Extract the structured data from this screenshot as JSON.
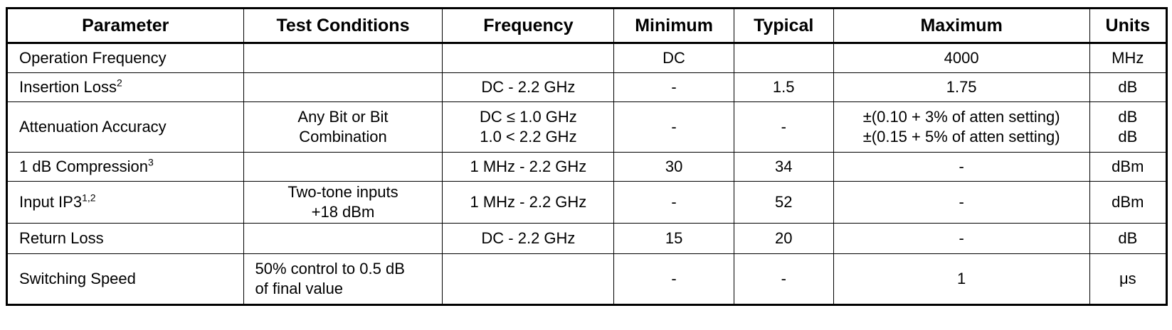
{
  "headers": {
    "parameter": "Parameter",
    "test_conditions": "Test Conditions",
    "frequency": "Frequency",
    "minimum": "Minimum",
    "typical": "Typical",
    "maximum": "Maximum",
    "units": "Units"
  },
  "rows": [
    {
      "parameter": "Operation Frequency",
      "sup": "",
      "test_conditions": [
        "",
        ""
      ],
      "frequency": [
        "",
        ""
      ],
      "minimum": "DC",
      "typical": "",
      "maximum": [
        "4000",
        ""
      ],
      "units": [
        "MHz",
        ""
      ]
    },
    {
      "parameter": "Insertion Loss",
      "sup": "2",
      "test_conditions": [
        "",
        ""
      ],
      "frequency": [
        "DC - 2.2 GHz",
        ""
      ],
      "minimum": "-",
      "typical": "1.5",
      "maximum": [
        "1.75",
        ""
      ],
      "units": [
        "dB",
        ""
      ]
    },
    {
      "parameter": "Attenuation Accuracy",
      "sup": "",
      "test_conditions": [
        "Any Bit or Bit",
        "Combination"
      ],
      "frequency": [
        "DC ≤ 1.0 GHz",
        "1.0 < 2.2 GHz"
      ],
      "minimum": "-",
      "typical": "-",
      "maximum": [
        "±(0.10 + 3% of atten setting)",
        "±(0.15 + 5% of atten setting)"
      ],
      "units": [
        "dB",
        "dB"
      ]
    },
    {
      "parameter": "1 dB Compression",
      "sup": "3",
      "test_conditions": [
        "",
        ""
      ],
      "frequency": [
        "1 MHz - 2.2 GHz",
        ""
      ],
      "minimum": "30",
      "typical": "34",
      "maximum": [
        "-",
        ""
      ],
      "units": [
        "dBm",
        ""
      ]
    },
    {
      "parameter": "Input IP3",
      "sup": "1,2",
      "test_conditions": [
        "Two-tone inputs",
        "+18 dBm"
      ],
      "frequency": [
        "1 MHz - 2.2 GHz",
        ""
      ],
      "minimum": "-",
      "typical": "52",
      "maximum": [
        "-",
        ""
      ],
      "units": [
        "dBm",
        ""
      ]
    },
    {
      "parameter": "Return Loss",
      "sup": "",
      "test_conditions": [
        "",
        ""
      ],
      "frequency": [
        "DC - 2.2 GHz",
        ""
      ],
      "minimum": "15",
      "typical": "20",
      "maximum": [
        "-",
        ""
      ],
      "units": [
        "dB",
        ""
      ]
    },
    {
      "parameter": "Switching Speed",
      "sup": "",
      "test_conditions": [
        "50% control to 0.5 dB",
        "of final value"
      ],
      "frequency": [
        "",
        ""
      ],
      "minimum": "-",
      "typical": "-",
      "maximum": [
        "1",
        ""
      ],
      "units": [
        "μs",
        ""
      ]
    }
  ]
}
